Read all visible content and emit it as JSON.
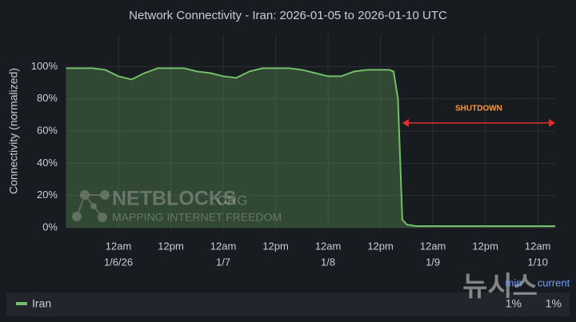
{
  "chart_data": {
    "type": "area",
    "title": "Network Connectivity - Iran: 2026-01-05 to 2026-01-10 UTC",
    "y_label": "Connectivity (normalized)",
    "x": [
      "2026-01-05T12:00",
      "2026-01-05T15:00",
      "2026-01-05T18:00",
      "2026-01-05T21:00",
      "2026-01-06T00:00",
      "2026-01-06T03:00",
      "2026-01-06T06:00",
      "2026-01-06T09:00",
      "2026-01-06T12:00",
      "2026-01-06T15:00",
      "2026-01-06T18:00",
      "2026-01-06T21:00",
      "2026-01-07T00:00",
      "2026-01-07T03:00",
      "2026-01-07T06:00",
      "2026-01-07T09:00",
      "2026-01-07T12:00",
      "2026-01-07T15:00",
      "2026-01-07T18:00",
      "2026-01-07T21:00",
      "2026-01-08T00:00",
      "2026-01-08T03:00",
      "2026-01-08T06:00",
      "2026-01-08T09:00",
      "2026-01-08T12:00",
      "2026-01-08T14:00",
      "2026-01-08T15:00",
      "2026-01-08T16:00",
      "2026-01-08T17:00",
      "2026-01-08T18:00",
      "2026-01-08T20:00",
      "2026-01-09T02:00",
      "2026-01-09T08:00",
      "2026-01-09T14:00",
      "2026-01-09T20:00",
      "2026-01-10T02:00",
      "2026-01-10T04:00"
    ],
    "series": [
      {
        "name": "Iran",
        "color": "#73bf69",
        "values": [
          99,
          99,
          99,
          98,
          94,
          92,
          96,
          99,
          99,
          99,
          97,
          96,
          94,
          93,
          97,
          99,
          99,
          99,
          98,
          96,
          94,
          94,
          97,
          98,
          98,
          98,
          97,
          80,
          5,
          2,
          1,
          1,
          1,
          1,
          1,
          1,
          1
        ]
      }
    ],
    "xlim": [
      "2026-01-05T12:00",
      "2026-01-10T04:00"
    ],
    "xticks": [
      {
        "value": "2026-01-06T00:00",
        "label": [
          "12am",
          "1/6/26"
        ]
      },
      {
        "value": "2026-01-06T12:00",
        "label": [
          "12pm"
        ]
      },
      {
        "value": "2026-01-07T00:00",
        "label": [
          "12am",
          "1/7"
        ]
      },
      {
        "value": "2026-01-07T12:00",
        "label": [
          "12pm"
        ]
      },
      {
        "value": "2026-01-08T00:00",
        "label": [
          "12am",
          "1/8"
        ]
      },
      {
        "value": "2026-01-08T12:00",
        "label": [
          "12pm"
        ]
      },
      {
        "value": "2026-01-09T00:00",
        "label": [
          "12am",
          "1/9"
        ]
      },
      {
        "value": "2026-01-09T12:00",
        "label": [
          "12pm"
        ]
      },
      {
        "value": "2026-01-10T00:00",
        "label": [
          "12am",
          "1/10"
        ]
      }
    ],
    "ylim": [
      0,
      120
    ],
    "yticks": [
      {
        "value": 0,
        "label": "0%"
      },
      {
        "value": 20,
        "label": "20%"
      },
      {
        "value": 40,
        "label": "40%"
      },
      {
        "value": 60,
        "label": "60%"
      },
      {
        "value": 80,
        "label": "80%"
      },
      {
        "value": 100,
        "label": "100%"
      }
    ],
    "grid": true,
    "annotation": {
      "text": "SHUTDOWN",
      "x_start": "2026-01-08T17:00",
      "x_end": "2026-01-10T04:00",
      "y": 65,
      "color": "#e02f2f",
      "text_color": "#ff9830"
    },
    "legend_stats": {
      "headers": [
        "min",
        "current"
      ],
      "values": [
        1,
        1
      ],
      "value_labels": [
        "1%",
        "1%"
      ]
    },
    "watermarks": {
      "brand": "NETBLOCKS",
      "domain": ".ORG",
      "tagline": "MAPPING INTERNET FREEDOM",
      "agency": "뉴시스"
    }
  }
}
